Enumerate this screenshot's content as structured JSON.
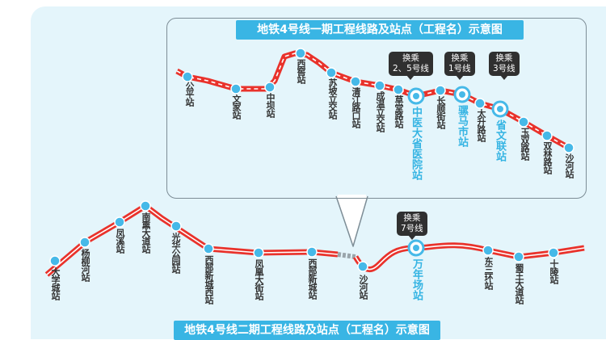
{
  "phase1": {
    "title": "地铁4号线一期工程线路及站点（工程名）示意图",
    "stations": [
      "公平站",
      "文家站",
      "中坝站",
      "西窖站",
      "苏坡立交站",
      "清江路口站",
      "成温立交站",
      "草堂路站",
      "中医大省医院站",
      "长顺街站",
      "骡马市站",
      "太升路站",
      "省文联站",
      "玉双路站",
      "双林路站",
      "沙河站"
    ],
    "transfers": [
      {
        "label": "换乘",
        "lines": "2、5号线",
        "station": "中医大省医院站"
      },
      {
        "label": "换乘",
        "lines": "1号线",
        "station": "骡马市站"
      },
      {
        "label": "换乘",
        "lines": "3号线",
        "station": "省文联站"
      }
    ]
  },
  "phase2": {
    "title": "地铁4号线二期工程线路及站点（工程名）示意图",
    "stations": [
      "大学城站",
      "杨柳河站",
      "凤溪站",
      "南熏大道站",
      "光华公园站",
      "西部新城西站",
      "凤凰大街站",
      "西部新城站",
      "沙河站",
      "万年场站",
      "东三环站",
      "蜀王大道站",
      "十陵站"
    ],
    "transfers": [
      {
        "label": "换乘",
        "lines": "7号线",
        "station": "万年场站"
      }
    ]
  },
  "colors": {
    "line": "#e9322b",
    "station": "#46b9e8",
    "title_bg": "#39b5e4",
    "background": "#e4f5fb",
    "callout_border": "#7d8d96",
    "transfer_text": "#35b4e3"
  }
}
